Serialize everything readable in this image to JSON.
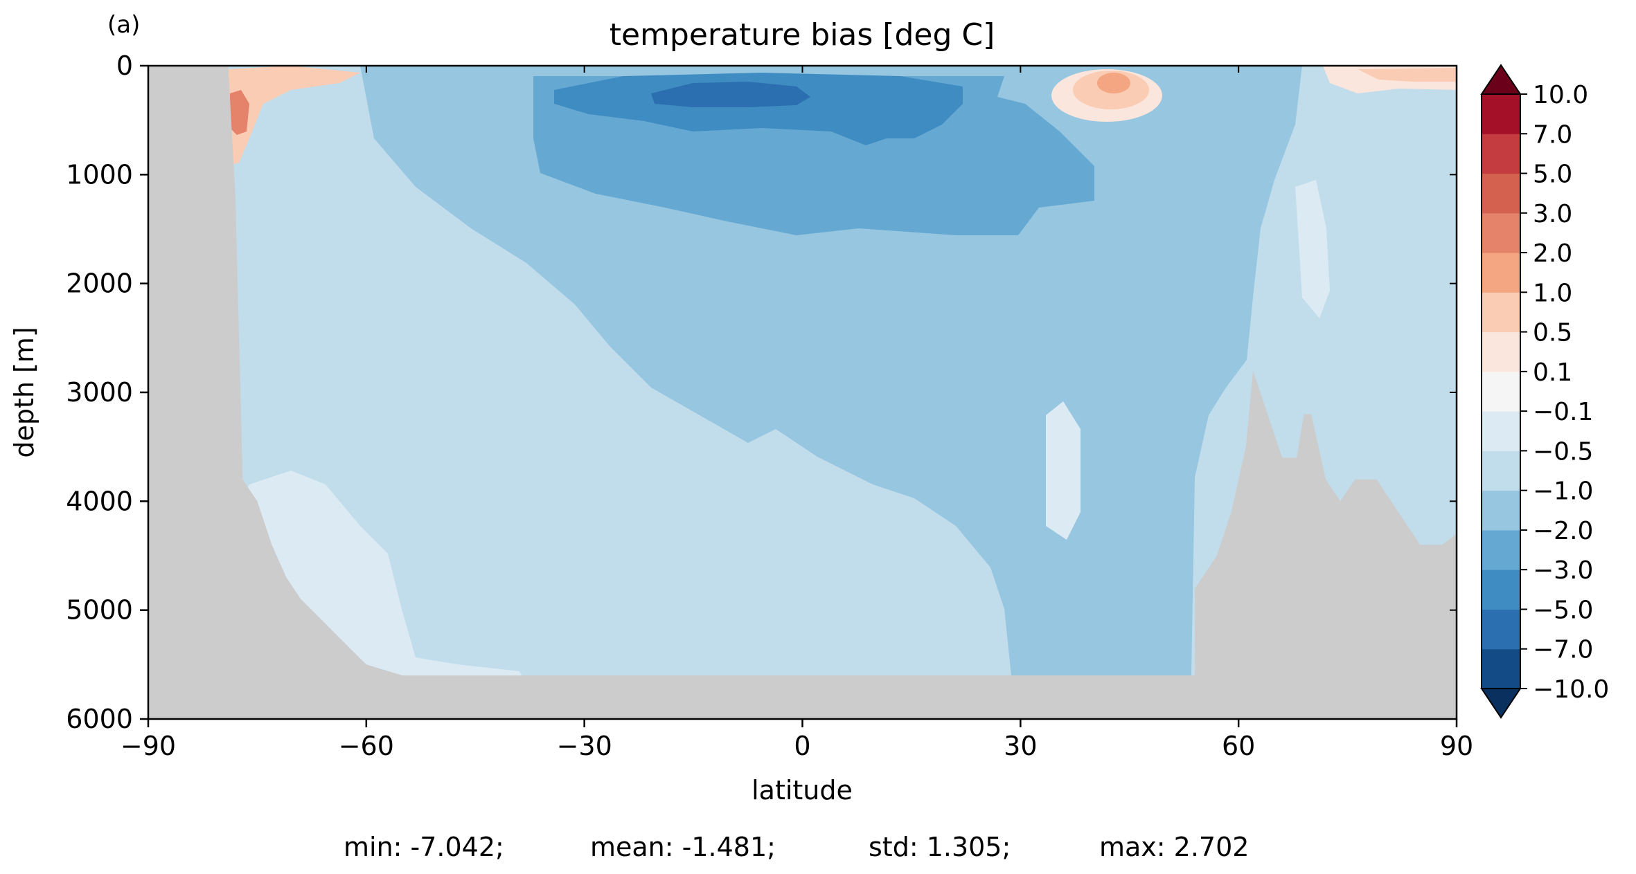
{
  "panel_label": "(a)",
  "stats": {
    "min": "min: -7.042;",
    "mean": "mean: -1.481;",
    "std": "std: 1.305;",
    "max": "max: 2.702"
  },
  "chart_data": {
    "type": "heatmap",
    "title": "temperature bias [deg C]",
    "xlabel": "latitude",
    "ylabel": "depth [m]",
    "xlim": [
      -90,
      90
    ],
    "ylim": [
      6000,
      0
    ],
    "y_inverted": true,
    "x_ticks": [
      -90,
      -60,
      -30,
      0,
      30,
      60,
      90
    ],
    "x_tick_labels": [
      "−90",
      "−60",
      "−30",
      "0",
      "30",
      "60",
      "90"
    ],
    "y_ticks": [
      0,
      1000,
      2000,
      3000,
      4000,
      5000,
      6000
    ],
    "y_tick_labels": [
      "0",
      "1000",
      "2000",
      "3000",
      "4000",
      "5000",
      "6000"
    ],
    "colorbar": {
      "levels": [
        -10,
        -7,
        -5,
        -3,
        -2,
        -1,
        -0.5,
        -0.1,
        0.1,
        0.5,
        1,
        2,
        3,
        5,
        7,
        10
      ],
      "tick_labels": [
        "−10.0",
        "−7.0",
        "−5.0",
        "−3.0",
        "−2.0",
        "−1.0",
        "−0.5",
        "−0.1",
        "0.1",
        "0.5",
        "1.0",
        "2.0",
        "3.0",
        "5.0",
        "7.0",
        "10.0"
      ],
      "colors": [
        "#134b87",
        "#2c6fb0",
        "#3f8cc3",
        "#65a9d3",
        "#97c6e0",
        "#c1ddec",
        "#dbeaf3",
        "#f5f5f5",
        "#fae6dd",
        "#fbccb4",
        "#f4a582",
        "#e4826a",
        "#d46150",
        "#c43b40",
        "#a31028"
      ],
      "under_color": "#0a3060",
      "over_color": "#6a0019",
      "extend": "both"
    },
    "land_color": "#cccccc",
    "bathymetry": {
      "description_points": [
        [
          -90,
          0
        ],
        [
          -79,
          0
        ],
        [
          -78,
          1200
        ],
        [
          -77,
          3800
        ],
        [
          -75,
          4000
        ],
        [
          -73,
          4400
        ],
        [
          -71,
          4700
        ],
        [
          -69,
          4900
        ],
        [
          -66,
          5100
        ],
        [
          -63,
          5300
        ],
        [
          -60,
          5500
        ],
        [
          -55,
          5600
        ],
        [
          54,
          5600
        ],
        [
          54,
          4800
        ],
        [
          57,
          4500
        ],
        [
          59,
          4100
        ],
        [
          61,
          3500
        ],
        [
          62,
          2800
        ],
        [
          63,
          3000
        ],
        [
          64,
          3200
        ],
        [
          66,
          3600
        ],
        [
          68,
          3600
        ],
        [
          69,
          3200
        ],
        [
          70,
          3200
        ],
        [
          72,
          3800
        ],
        [
          74,
          4000
        ],
        [
          76,
          3800
        ],
        [
          79,
          3800
        ],
        [
          82,
          4100
        ],
        [
          85,
          4400
        ],
        [
          88,
          4400
        ],
        [
          90,
          4300
        ],
        [
          90,
          6000
        ],
        [
          -90,
          6000
        ]
      ]
    }
  }
}
